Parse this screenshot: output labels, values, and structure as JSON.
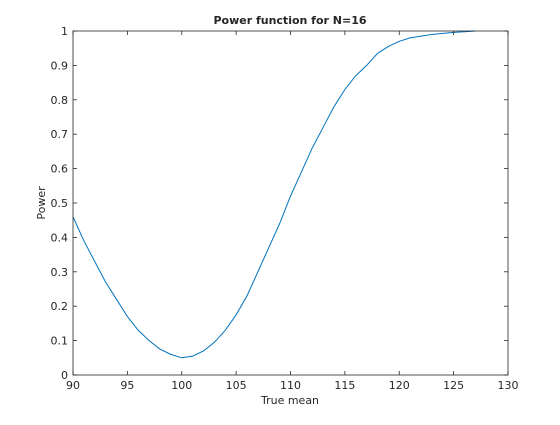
{
  "chart_data": {
    "type": "line",
    "title": "Power function for N=16",
    "xlabel": "True mean",
    "ylabel": "Power",
    "xlim": [
      90,
      130
    ],
    "ylim": [
      0,
      1
    ],
    "grid": false,
    "line_color": "#0072bd",
    "xticks": [
      90,
      95,
      100,
      105,
      110,
      115,
      120,
      125,
      130
    ],
    "xtick_labels": [
      "90",
      "95",
      "100",
      "105",
      "110",
      "115",
      "120",
      "125",
      "130"
    ],
    "yticks": [
      0,
      0.1,
      0.2,
      0.3,
      0.4,
      0.5,
      0.6,
      0.7,
      0.8,
      0.9,
      1
    ],
    "ytick_labels": [
      "0",
      "0.1",
      "0.2",
      "0.3",
      "0.4",
      "0.5",
      "0.6",
      "0.7",
      "0.8",
      "0.9",
      "1"
    ],
    "series": [
      {
        "x": [
          90,
          91,
          92,
          93,
          94,
          95,
          96,
          97,
          98,
          99,
          100,
          101,
          102,
          103,
          104,
          105,
          106,
          107,
          108,
          109,
          110,
          111,
          112,
          113,
          114,
          115,
          116,
          117,
          118,
          119,
          120,
          121,
          122,
          123,
          124,
          125,
          126,
          127
        ],
        "y": [
          0.46,
          0.39,
          0.33,
          0.27,
          0.22,
          0.17,
          0.13,
          0.1,
          0.075,
          0.06,
          0.05,
          0.055,
          0.07,
          0.095,
          0.13,
          0.175,
          0.23,
          0.3,
          0.37,
          0.44,
          0.52,
          0.59,
          0.66,
          0.72,
          0.78,
          0.83,
          0.87,
          0.9,
          0.935,
          0.955,
          0.97,
          0.98,
          0.985,
          0.99,
          0.993,
          0.996,
          0.998,
          1.0
        ]
      }
    ]
  }
}
